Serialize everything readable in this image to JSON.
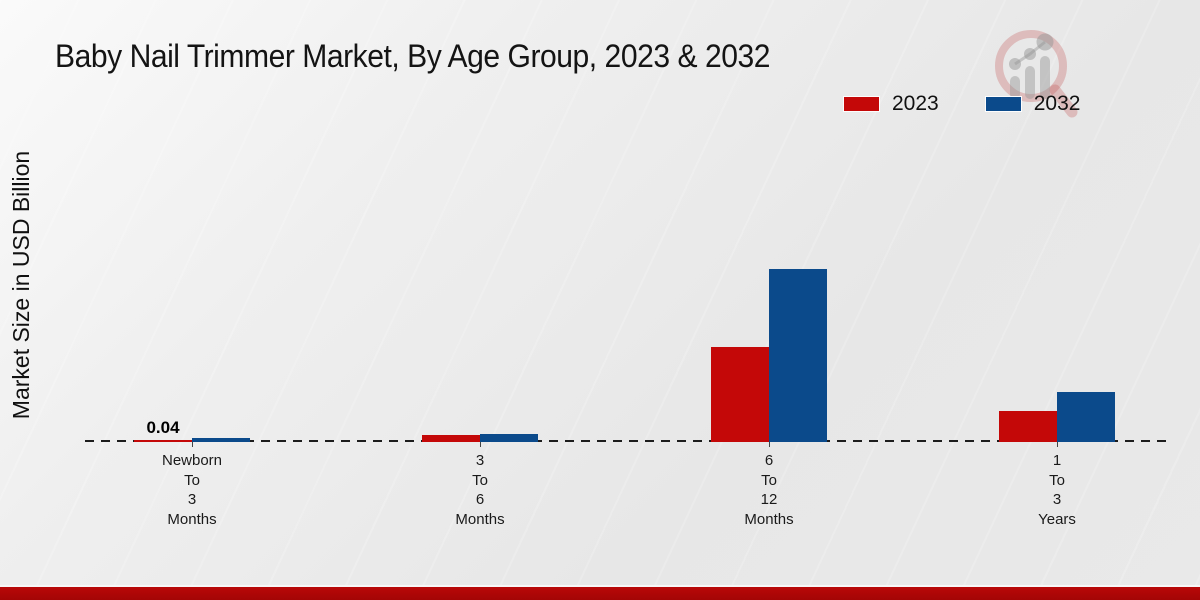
{
  "title": "Baby Nail Trimmer Market, By Age Group, 2023 & 2032",
  "y_axis_label": "Market Size in USD Billion",
  "legend": [
    {
      "label": "2023",
      "color": "#c40808"
    },
    {
      "label": "2032",
      "color": "#0b4a8b"
    }
  ],
  "colors": {
    "series_2023": "#c40808",
    "series_2032": "#0b4a8b",
    "footer_bar": "#b90808",
    "background": "#ebebeb"
  },
  "watermark": {
    "icon": "magnifier-trend-chart-logo"
  },
  "footer": {
    "note": ""
  },
  "chart_data": {
    "type": "bar",
    "title": "Baby Nail Trimmer Market, By Age Group, 2023 & 2032",
    "categories": [
      "Newborn To 3 Months",
      "3 To 6 Months",
      "6 To 12 Months",
      "1 To 3 Years"
    ],
    "category_lines": [
      [
        "Newborn",
        "To",
        "3",
        "Months"
      ],
      [
        "3",
        "To",
        "6",
        "Months"
      ],
      [
        "6",
        "To",
        "12",
        "Months"
      ],
      [
        "1",
        "To",
        "3",
        "Years"
      ]
    ],
    "series": [
      {
        "name": "2023",
        "color": "#c40808",
        "values": [
          0.04,
          0.13,
          1.9,
          0.62
        ]
      },
      {
        "name": "2032",
        "color": "#0b4a8b",
        "values": [
          0.07,
          0.16,
          3.46,
          1.0
        ]
      }
    ],
    "data_labels": [
      "0.04",
      null,
      null,
      null
    ],
    "xlabel": "",
    "ylabel": "Market Size in USD Billion",
    "ylim": [
      0,
      4
    ],
    "grid": false,
    "baseline_style": "dashed",
    "legend_position": "top-right"
  }
}
